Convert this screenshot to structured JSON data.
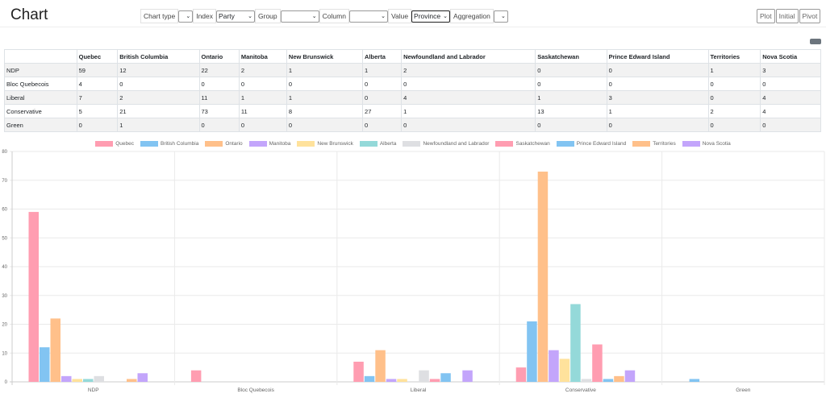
{
  "header": {
    "title": "Chart"
  },
  "toolbar": {
    "chart_type_label": "Chart type",
    "chart_type_value": "",
    "index_label": "Index",
    "index_value": "Party",
    "group_label": "Group",
    "group_value": "",
    "column_label": "Column",
    "column_value": "",
    "value_label": "Value",
    "value_value": "Province",
    "aggregation_label": "Aggregation",
    "aggregation_value": ""
  },
  "buttons": {
    "plot": "Plot",
    "initial": "Initial",
    "pivot": "Pivot"
  },
  "colors": [
    "#ff9db1",
    "#82c4f2",
    "#ffc08a",
    "#c3a5fb",
    "#ffe29c",
    "#94d9d9",
    "#dedfe2",
    "#ff9db1",
    "#82c4f2",
    "#ffc08a",
    "#c3a5fb"
  ],
  "chart_data": {
    "type": "bar",
    "categories": [
      "NDP",
      "Bloc Quebecois",
      "Liberal",
      "Conservative",
      "Green"
    ],
    "series": [
      {
        "name": "Quebec",
        "values": [
          59,
          4,
          7,
          5,
          0
        ]
      },
      {
        "name": "British Columbia",
        "values": [
          12,
          0,
          2,
          21,
          1
        ]
      },
      {
        "name": "Ontario",
        "values": [
          22,
          0,
          11,
          73,
          0
        ]
      },
      {
        "name": "Manitoba",
        "values": [
          2,
          0,
          1,
          11,
          0
        ]
      },
      {
        "name": "New Brunswick",
        "values": [
          1,
          0,
          1,
          8,
          0
        ]
      },
      {
        "name": "Alberta",
        "values": [
          1,
          0,
          0,
          27,
          0
        ]
      },
      {
        "name": "Newfoundland and Labrador",
        "values": [
          2,
          0,
          4,
          1,
          0
        ]
      },
      {
        "name": "Saskatchewan",
        "values": [
          0,
          0,
          1,
          13,
          0
        ]
      },
      {
        "name": "Prince Edward Island",
        "values": [
          0,
          0,
          3,
          1,
          0
        ]
      },
      {
        "name": "Territories",
        "values": [
          1,
          0,
          0,
          2,
          0
        ]
      },
      {
        "name": "Nova Scotia",
        "values": [
          3,
          0,
          4,
          4,
          0
        ]
      }
    ],
    "yticks": [
      "0",
      "10",
      "20",
      "30",
      "40",
      "50",
      "60",
      "70",
      "80"
    ],
    "ylim": [
      0,
      80
    ],
    "legend": "top",
    "grid": true,
    "xlabel": "",
    "ylabel": "",
    "title": ""
  }
}
